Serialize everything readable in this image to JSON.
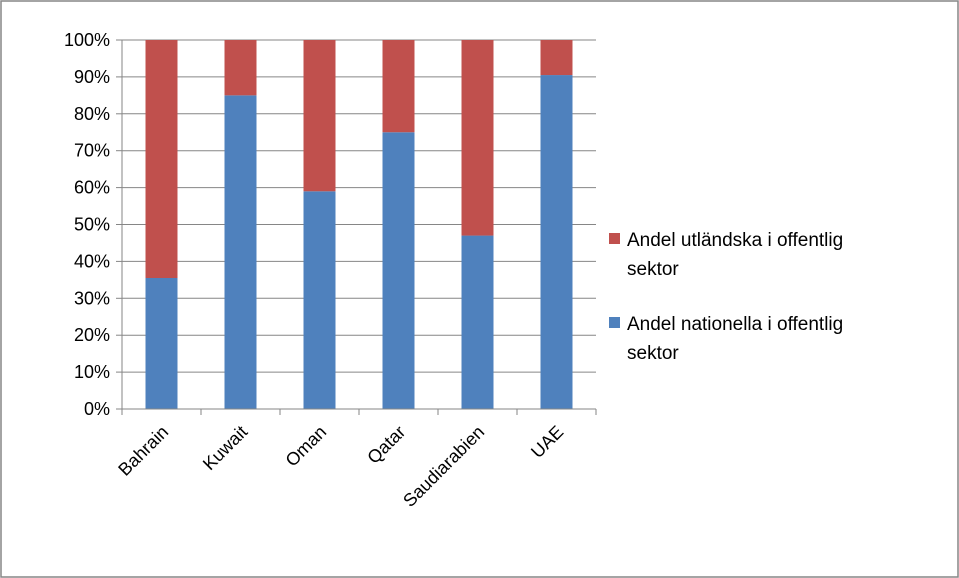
{
  "chart_data": {
    "type": "bar",
    "stacked": "percent",
    "categories": [
      "Bahrain",
      "Kuwait",
      "Oman",
      "Qatar",
      "Saudiarabien",
      "UAE"
    ],
    "series": [
      {
        "name": "Andel nationella i offentlig sektor",
        "values": [
          35.5,
          85,
          59,
          75,
          47,
          90.5
        ],
        "color": "#4f81bd"
      },
      {
        "name": "Andel utländska i offentlig sektor",
        "values": [
          64.5,
          15,
          41,
          25,
          53,
          9.5
        ],
        "color": "#c0504d"
      }
    ],
    "legend_order": [
      1,
      0
    ],
    "legend_position": "right",
    "y_ticks": [
      "0%",
      "10%",
      "20%",
      "30%",
      "40%",
      "50%",
      "60%",
      "70%",
      "80%",
      "90%",
      "100%"
    ],
    "ylim": [
      0,
      100
    ],
    "grid": true,
    "xlabel": "",
    "ylabel": "",
    "title": ""
  }
}
